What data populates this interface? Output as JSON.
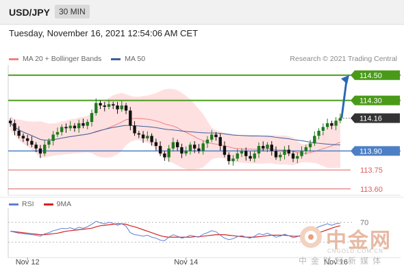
{
  "header": {
    "symbol": "USD/JPY",
    "interval": "30 MIN"
  },
  "datetime": "Tuesday, November 16, 2021 12:54:06 AM CET",
  "legend": {
    "ma20": {
      "label": "MA 20 + Bollinger Bands",
      "color": "#f08080"
    },
    "ma50": {
      "label": "MA 50",
      "color": "#3a5f9e"
    }
  },
  "credit": "Research © 2021 Trading Central",
  "rsi_legend": {
    "rsi": {
      "label": "RSI",
      "color": "#5b7fd4"
    },
    "ma9": {
      "label": "9MA",
      "color": "#d62020"
    }
  },
  "watermark": {
    "big": "中金网",
    "url": "CNGOLD.COM.CN",
    "sub": "中金财经新媒体"
  },
  "colors": {
    "bullish": "#1e7a1e",
    "bearish": "#111111",
    "bollinger": "#ffd6d6",
    "target": "#4a9a1a",
    "pivot": "#4d7fc4",
    "support": "#e05a5a",
    "current": "#333333",
    "arrow": "#2a68b5"
  },
  "chart_data": [
    {
      "type": "candlestick",
      "x_ticks": [
        "Nov 12",
        "Nov 14",
        "Nov 16"
      ],
      "ylim": [
        113.55,
        114.58
      ],
      "levels": [
        {
          "value": 114.5,
          "label": "114.50",
          "kind": "target"
        },
        {
          "value": 114.3,
          "label": "114.30",
          "kind": "target"
        },
        {
          "value": 114.16,
          "label": "114.16",
          "kind": "current"
        },
        {
          "value": 113.9,
          "label": "113.90",
          "kind": "pivot"
        },
        {
          "value": 113.75,
          "label": "113.75",
          "kind": "support"
        },
        {
          "value": 113.6,
          "label": "113.60",
          "kind": "support"
        }
      ],
      "close": [
        114.12,
        114.06,
        114.02,
        114.0,
        113.98,
        113.95,
        113.92,
        113.88,
        113.95,
        113.98,
        114.03,
        114.05,
        114.09,
        114.08,
        114.1,
        114.08,
        114.12,
        114.1,
        114.13,
        114.2,
        114.28,
        114.26,
        114.25,
        114.27,
        114.26,
        114.23,
        114.26,
        114.22,
        114.1,
        114.04,
        114.03,
        114.0,
        114.02,
        113.97,
        113.94,
        113.88,
        113.85,
        113.92,
        113.97,
        113.93,
        113.88,
        113.9,
        113.95,
        113.92,
        113.9,
        113.96,
        113.99,
        114.03,
        114.01,
        113.94,
        113.87,
        113.82,
        113.84,
        113.88,
        113.9,
        113.86,
        113.84,
        113.88,
        113.94,
        113.92,
        113.95,
        113.9,
        113.85,
        113.87,
        113.91,
        113.88,
        113.84,
        113.86,
        113.9,
        113.93,
        113.96,
        114.02,
        114.06,
        114.09,
        114.12,
        114.1,
        114.14,
        114.16
      ]
    },
    {
      "type": "line",
      "series": [
        {
          "name": "RSI",
          "values": [
            52,
            50,
            48,
            47,
            46,
            45,
            44,
            42,
            47,
            49,
            53,
            55,
            58,
            57,
            59,
            56,
            60,
            58,
            61,
            66,
            72,
            69,
            67,
            70,
            68,
            64,
            67,
            62,
            49,
            45,
            44,
            42,
            44,
            40,
            38,
            34,
            33,
            40,
            45,
            42,
            38,
            40,
            44,
            42,
            40,
            46,
            49,
            53,
            51,
            44,
            38,
            35,
            37,
            41,
            43,
            40,
            38,
            42,
            47,
            45,
            48,
            44,
            40,
            42,
            46,
            43,
            39,
            41,
            45,
            48,
            51,
            57,
            61,
            64,
            67,
            64,
            67,
            68
          ]
        },
        {
          "name": "9MA",
          "values": [
            52,
            51,
            50,
            49,
            48,
            47,
            46,
            45,
            45,
            46,
            47,
            48,
            50,
            52,
            53,
            54,
            55,
            56,
            57,
            58,
            61,
            63,
            64,
            65,
            66,
            67,
            67,
            66,
            63,
            61,
            58,
            55,
            52,
            49,
            46,
            43,
            41,
            40,
            40,
            40,
            40,
            40,
            40,
            41,
            41,
            42,
            43,
            44,
            45,
            45,
            45,
            44,
            43,
            42,
            41,
            40,
            40,
            40,
            41,
            42,
            43,
            44,
            44,
            44,
            44,
            43,
            42,
            42,
            42,
            43,
            44,
            46,
            49,
            52,
            55,
            58,
            61,
            63
          ]
        }
      ],
      "ylim": [
        10,
        90
      ],
      "ref_lines": [
        {
          "value": 70,
          "label": "70"
        },
        {
          "value": 30,
          "label": ""
        }
      ]
    }
  ]
}
